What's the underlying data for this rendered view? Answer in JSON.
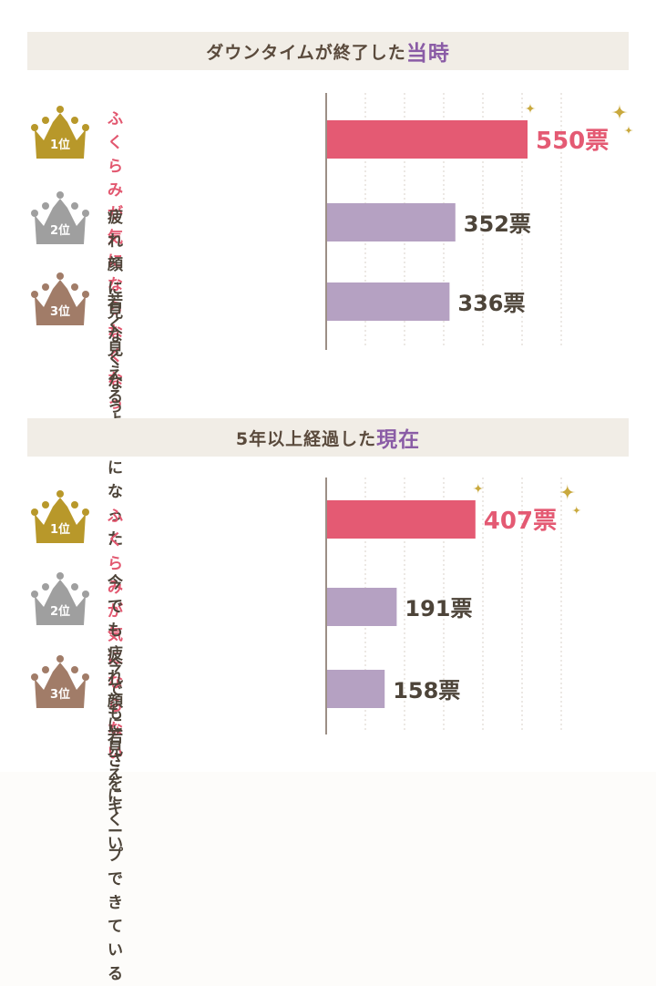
{
  "colors": {
    "top_bar": "#e45a73",
    "other_bar": "#b5a1c2",
    "top_value": "#e45a73",
    "other_value": "#4d4439",
    "gold": "#b8982a",
    "silver": "#9f9f9f",
    "bronze": "#a17c68",
    "sparkle": "#c9a93e",
    "header_accent": "#8a5ca6"
  },
  "icons": [
    "crown-icon",
    "sparkle-icon"
  ],
  "sections": [
    {
      "title_main": "ダウンタイムが終了した",
      "title_accent": "当時",
      "ranks": [
        {
          "rank_label": "1位",
          "label": "ふくらみが\n気にならなくなった",
          "value_text": "550票"
        },
        {
          "rank_label": "2位",
          "label": "疲れ顔に見なくなった",
          "value_text": "352票"
        },
        {
          "rank_label": "3位",
          "label": "若く見えるようになった",
          "value_text": "336票"
        }
      ]
    },
    {
      "title_main": "5年以上経過した",
      "title_accent": "現在",
      "ranks": [
        {
          "rank_label": "1位",
          "label": "ふくらみが気にならない",
          "value_text": "407票"
        },
        {
          "rank_label": "2位",
          "label": "今でも\n疲れ顔に見えにくい",
          "value_text": "191票"
        },
        {
          "rank_label": "3位",
          "label": "今でも\n若さをキープできている",
          "value_text": "158票"
        }
      ]
    }
  ],
  "chart_data": [
    {
      "type": "bar",
      "title": "ダウンタイムが終了した当時",
      "categories": [
        "ふくらみが気にならなくなった",
        "疲れ顔に見なくなった",
        "若く見えるようになった"
      ],
      "values": [
        550,
        352,
        336
      ],
      "xlim": [
        0,
        600
      ],
      "grid": true,
      "orientation": "horizontal"
    },
    {
      "type": "bar",
      "title": "5年以上経過した現在",
      "categories": [
        "ふくらみが気にならない",
        "今でも疲れ顔に見えにくい",
        "今でも若さをキープできている"
      ],
      "values": [
        407,
        191,
        158
      ],
      "xlim": [
        0,
        600
      ],
      "grid": true,
      "orientation": "horizontal"
    }
  ]
}
